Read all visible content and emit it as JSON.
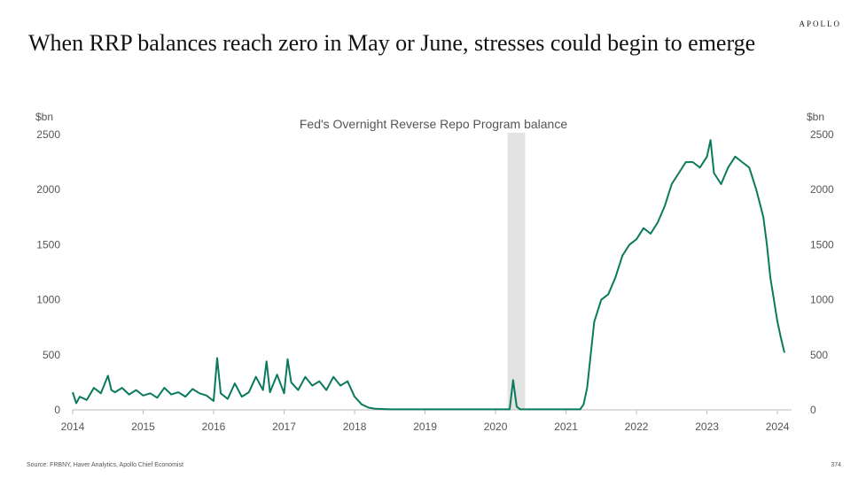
{
  "header": {
    "brand": "APOLLO",
    "title": "When RRP balances reach zero in May or June, stresses could begin to emerge"
  },
  "footer": {
    "source": "Source: FRBNY, Haver Analytics, Apollo Chief Economist",
    "page": "374"
  },
  "colors": {
    "series": "#0b7a5c",
    "recession_band": "#e3e3e3",
    "axis": "#bbbbbb"
  },
  "chart_data": {
    "type": "line",
    "title": "Fed's Overnight Reverse Repo Program balance",
    "ylabel_left": "$bn",
    "ylabel_right": "$bn",
    "xlim": [
      2014,
      2024.2
    ],
    "ylim": [
      0,
      2500
    ],
    "x_ticks": [
      "2014",
      "2015",
      "2016",
      "2017",
      "2018",
      "2019",
      "2020",
      "2021",
      "2022",
      "2023",
      "2024"
    ],
    "y_ticks": [
      "0",
      "500",
      "1000",
      "1500",
      "2000",
      "2500"
    ],
    "shaded_period": [
      2020.17,
      2020.42
    ],
    "grid": false,
    "series": [
      {
        "x": [
          2014.0,
          2014.05,
          2014.1,
          2014.2,
          2014.3,
          2014.4,
          2014.5,
          2014.55,
          2014.6,
          2014.7,
          2014.8,
          2014.9,
          2015.0,
          2015.1,
          2015.2,
          2015.3,
          2015.4,
          2015.5,
          2015.6,
          2015.7,
          2015.8,
          2015.9,
          2016.0,
          2016.05,
          2016.1,
          2016.2,
          2016.3,
          2016.4,
          2016.5,
          2016.6,
          2016.7,
          2016.75,
          2016.8,
          2016.9,
          2017.0,
          2017.05,
          2017.1,
          2017.2,
          2017.3,
          2017.4,
          2017.5,
          2017.6,
          2017.7,
          2017.8,
          2017.9,
          2018.0,
          2018.1,
          2018.2,
          2018.3,
          2018.5,
          2018.7,
          2019.0,
          2019.3,
          2019.6,
          2019.9,
          2020.0,
          2020.2,
          2020.25,
          2020.3,
          2020.35,
          2020.5,
          2020.8,
          2021.0,
          2021.2,
          2021.25,
          2021.3,
          2021.35,
          2021.4,
          2021.5,
          2021.6,
          2021.7,
          2021.8,
          2021.9,
          2022.0,
          2022.1,
          2022.2,
          2022.3,
          2022.4,
          2022.5,
          2022.6,
          2022.7,
          2022.8,
          2022.9,
          2023.0,
          2023.05,
          2023.1,
          2023.2,
          2023.3,
          2023.4,
          2023.5,
          2023.6,
          2023.7,
          2023.8,
          2023.85,
          2023.9,
          2023.95,
          2024.0,
          2024.05,
          2024.1
        ],
        "y": [
          160,
          60,
          120,
          90,
          200,
          150,
          310,
          180,
          160,
          200,
          140,
          180,
          130,
          150,
          110,
          200,
          140,
          160,
          120,
          190,
          150,
          130,
          80,
          470,
          150,
          100,
          240,
          120,
          160,
          300,
          180,
          440,
          160,
          320,
          150,
          460,
          250,
          180,
          300,
          220,
          260,
          180,
          300,
          220,
          260,
          120,
          50,
          20,
          10,
          5,
          5,
          5,
          5,
          5,
          5,
          5,
          5,
          270,
          30,
          5,
          5,
          5,
          5,
          5,
          50,
          200,
          500,
          800,
          1000,
          1050,
          1200,
          1400,
          1500,
          1550,
          1650,
          1600,
          1700,
          1850,
          2050,
          2150,
          2250,
          2250,
          2200,
          2300,
          2450,
          2150,
          2050,
          2200,
          2300,
          2250,
          2200,
          2000,
          1750,
          1500,
          1200,
          1000,
          800,
          650,
          520
        ]
      }
    ]
  }
}
